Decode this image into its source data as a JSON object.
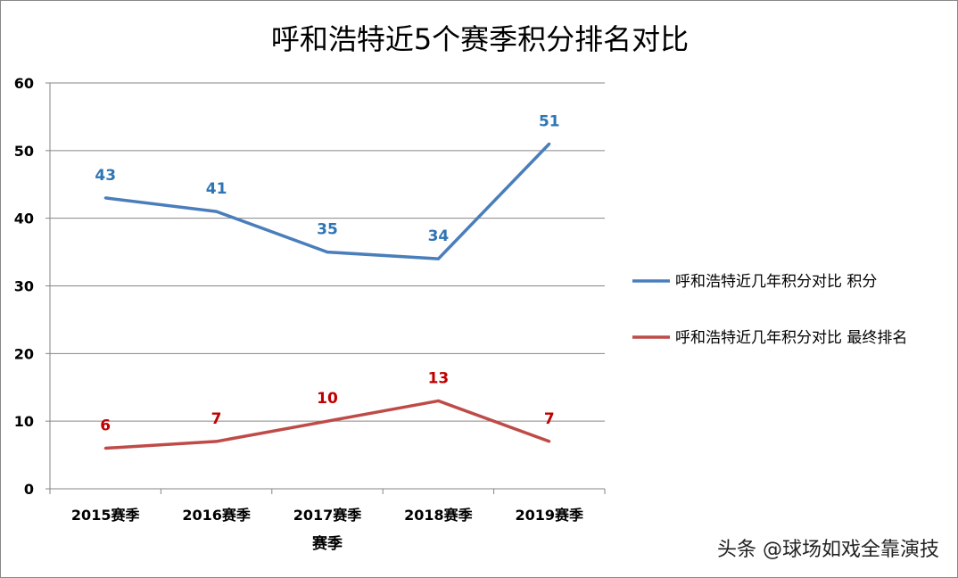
{
  "chart_data": {
    "type": "line",
    "title": "呼和浩特近5个赛季积分排名对比",
    "xlabel": "赛季",
    "ylabel": "",
    "categories": [
      "2015赛季",
      "2016赛季",
      "2017赛季",
      "2018赛季",
      "2019赛季"
    ],
    "ylim": [
      0,
      60
    ],
    "yticks": [
      0,
      10,
      20,
      30,
      40,
      50,
      60
    ],
    "grid": true,
    "legend_position": "right",
    "series": [
      {
        "name": "呼和浩特近几年积分对比 积分",
        "values": [
          43,
          41,
          35,
          34,
          51
        ],
        "color": "#4a7ebb",
        "label_color": "#2e75b6"
      },
      {
        "name": "呼和浩特近几年积分对比 最终排名",
        "values": [
          6,
          7,
          10,
          13,
          7
        ],
        "color": "#be4b48",
        "label_color": "#c00000"
      }
    ]
  },
  "watermark": "头条 @球场如戏全靠演技"
}
